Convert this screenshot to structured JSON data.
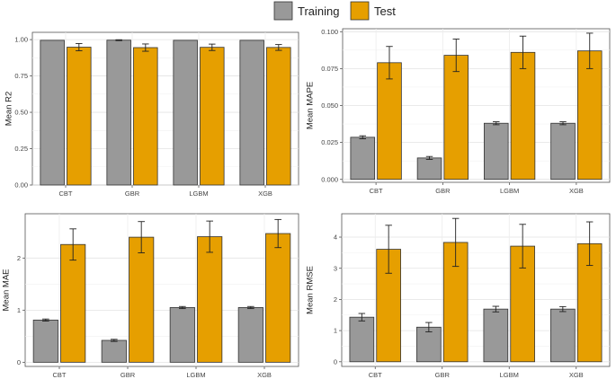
{
  "legend": {
    "items": [
      {
        "label": "Training",
        "color": "#999999"
      },
      {
        "label": "Test",
        "color": "#E69F00"
      }
    ]
  },
  "chart_data": [
    {
      "type": "bar",
      "ylabel": "Mean R2",
      "categories": [
        "CBT",
        "GBR",
        "LGBM",
        "XGB"
      ],
      "ylim": [
        0,
        1.05
      ],
      "yticks": [
        0,
        0.25,
        0.5,
        0.75,
        1.0
      ],
      "ytick_labels": [
        "0.00",
        "0.25",
        "0.50",
        "0.75",
        "1.00"
      ],
      "series": [
        {
          "name": "Training",
          "values": [
            0.995,
            0.996,
            0.995,
            0.995
          ],
          "errors": [
            0,
            0.003,
            0,
            0
          ]
        },
        {
          "name": "Test",
          "values": [
            0.948,
            0.945,
            0.947,
            0.946
          ],
          "errors": [
            0.025,
            0.025,
            0.022,
            0.02
          ]
        }
      ]
    },
    {
      "type": "bar",
      "ylabel": "Mean MAPE",
      "categories": [
        "CBT",
        "GBR",
        "LGBM",
        "XGB"
      ],
      "ylim": [
        -0.002,
        0.102
      ],
      "yticks": [
        0,
        0.025,
        0.05,
        0.075,
        0.1
      ],
      "ytick_labels": [
        "0.000",
        "0.025",
        "0.050",
        "0.075",
        "0.100"
      ],
      "series": [
        {
          "name": "Training",
          "values": [
            0.0285,
            0.0145,
            0.038,
            0.038
          ],
          "errors": [
            0.001,
            0.001,
            0.001,
            0.001
          ]
        },
        {
          "name": "Test",
          "values": [
            0.079,
            0.084,
            0.086,
            0.087
          ],
          "errors": [
            0.011,
            0.011,
            0.011,
            0.012
          ]
        }
      ]
    },
    {
      "type": "bar",
      "ylabel": "Mean MAE",
      "categories": [
        "CBT",
        "GBR",
        "LGBM",
        "XGB"
      ],
      "ylim": [
        -0.08,
        2.85
      ],
      "yticks": [
        0,
        1,
        2
      ],
      "ytick_labels": [
        "0",
        "1",
        "2"
      ],
      "series": [
        {
          "name": "Training",
          "values": [
            0.81,
            0.42,
            1.05,
            1.05
          ],
          "errors": [
            0.02,
            0.02,
            0.02,
            0.02
          ]
        },
        {
          "name": "Test",
          "values": [
            2.26,
            2.4,
            2.41,
            2.47
          ],
          "errors": [
            0.3,
            0.3,
            0.3,
            0.27
          ]
        }
      ]
    },
    {
      "type": "bar",
      "ylabel": "Mean RMSE",
      "categories": [
        "CBT",
        "GBR",
        "LGBM",
        "XGB"
      ],
      "ylim": [
        -0.15,
        4.75
      ],
      "yticks": [
        0,
        1,
        2,
        3,
        4
      ],
      "ytick_labels": [
        "0",
        "1",
        "2",
        "3",
        "4"
      ],
      "series": [
        {
          "name": "Training",
          "values": [
            1.43,
            1.11,
            1.69,
            1.69
          ],
          "errors": [
            0.12,
            0.15,
            0.09,
            0.08
          ]
        },
        {
          "name": "Test",
          "values": [
            3.61,
            3.83,
            3.71,
            3.79
          ],
          "errors": [
            0.77,
            0.77,
            0.7,
            0.7
          ]
        }
      ]
    }
  ]
}
